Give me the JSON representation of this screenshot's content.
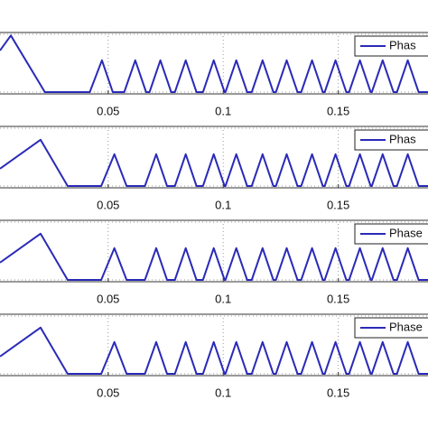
{
  "chart_data": [
    {
      "type": "line",
      "x": [
        0.003,
        0.0077,
        0.0225,
        0.042,
        0.0473,
        0.052,
        0.057,
        0.0618,
        0.0665,
        0.068,
        0.0727,
        0.0774,
        0.079,
        0.0837,
        0.0884,
        0.0912,
        0.0959,
        0.1006,
        0.101,
        0.1057,
        0.1104,
        0.1124,
        0.1171,
        0.1218,
        0.1229,
        0.1276,
        0.1323,
        0.1339,
        0.1386,
        0.1433,
        0.1441,
        0.1488,
        0.1535,
        0.1547,
        0.1594,
        0.1641,
        0.1646,
        0.1693,
        0.174,
        0.1755,
        0.1802,
        0.1849,
        0.189
      ],
      "series": [
        {
          "name": "Phas",
          "color": "#2a2ab8",
          "values": [
            0.72,
            0.98,
            0,
            0,
            0.55,
            0,
            0,
            0.55,
            0,
            0,
            0.55,
            0,
            0,
            0.55,
            0,
            0,
            0.55,
            0,
            0,
            0.55,
            0,
            0,
            0.55,
            0,
            0,
            0.55,
            0,
            0,
            0.55,
            0,
            0,
            0.55,
            0,
            0,
            0.55,
            0,
            0,
            0.55,
            0,
            0,
            0.55,
            0,
            0
          ]
        }
      ],
      "xlim": [
        0.003,
        0.189
      ],
      "xticks": [
        0.05,
        0.1,
        0.15
      ],
      "ylim": [
        0,
        1
      ],
      "grid": true
    },
    {
      "type": "line",
      "x": [
        0.003,
        0.0206,
        0.0324,
        0.047,
        0.0527,
        0.058,
        0.066,
        0.0709,
        0.0756,
        0.079,
        0.0837,
        0.0884,
        0.0912,
        0.0959,
        0.1006,
        0.101,
        0.1057,
        0.1104,
        0.1124,
        0.1171,
        0.1218,
        0.1229,
        0.1276,
        0.1323,
        0.1339,
        0.1386,
        0.1433,
        0.1441,
        0.1488,
        0.1535,
        0.1547,
        0.1594,
        0.1641,
        0.1646,
        0.1693,
        0.174,
        0.1755,
        0.1802,
        0.1849,
        0.189
      ],
      "series": [
        {
          "name": "Phas",
          "color": "#2a2ab8",
          "values": [
            0.3,
            0.8,
            0,
            0,
            0.55,
            0,
            0,
            0.55,
            0,
            0,
            0.55,
            0,
            0,
            0.55,
            0,
            0,
            0.55,
            0,
            0,
            0.55,
            0,
            0,
            0.55,
            0,
            0,
            0.55,
            0,
            0,
            0.55,
            0,
            0,
            0.55,
            0,
            0,
            0.55,
            0,
            0,
            0.55,
            0,
            0
          ]
        }
      ],
      "xlim": [
        0.003,
        0.189
      ],
      "xticks": [
        0.05,
        0.1,
        0.15
      ],
      "ylim": [
        0,
        1
      ],
      "grid": true
    },
    {
      "type": "line",
      "x": [
        0.003,
        0.0206,
        0.0324,
        0.047,
        0.0527,
        0.058,
        0.066,
        0.0709,
        0.0756,
        0.079,
        0.0837,
        0.0884,
        0.0912,
        0.0959,
        0.1006,
        0.101,
        0.1057,
        0.1104,
        0.1124,
        0.1171,
        0.1218,
        0.1229,
        0.1276,
        0.1323,
        0.1339,
        0.1386,
        0.1433,
        0.1441,
        0.1488,
        0.1535,
        0.1547,
        0.1594,
        0.1641,
        0.1646,
        0.1693,
        0.174,
        0.1755,
        0.1802,
        0.1849,
        0.189
      ],
      "series": [
        {
          "name": "Phase",
          "color": "#2a2ab8",
          "values": [
            0.3,
            0.8,
            0,
            0,
            0.55,
            0,
            0,
            0.55,
            0,
            0,
            0.55,
            0,
            0,
            0.55,
            0,
            0,
            0.55,
            0,
            0,
            0.55,
            0,
            0,
            0.55,
            0,
            0,
            0.55,
            0,
            0,
            0.55,
            0,
            0,
            0.55,
            0,
            0,
            0.55,
            0,
            0,
            0.55,
            0,
            0
          ]
        }
      ],
      "xlim": [
        0.003,
        0.189
      ],
      "xticks": [
        0.05,
        0.1,
        0.15
      ],
      "ylim": [
        0,
        1
      ],
      "grid": true
    },
    {
      "type": "line",
      "x": [
        0.003,
        0.0206,
        0.0324,
        0.047,
        0.0527,
        0.058,
        0.066,
        0.0709,
        0.0756,
        0.079,
        0.0837,
        0.0884,
        0.0912,
        0.0959,
        0.1006,
        0.101,
        0.1057,
        0.1104,
        0.1124,
        0.1171,
        0.1218,
        0.1229,
        0.1276,
        0.1323,
        0.1339,
        0.1386,
        0.1433,
        0.1441,
        0.1488,
        0.1535,
        0.1547,
        0.1594,
        0.1641,
        0.1646,
        0.1693,
        0.174,
        0.1755,
        0.1802,
        0.1849,
        0.189
      ],
      "series": [
        {
          "name": "Phase",
          "color": "#2a2ab8",
          "values": [
            0.3,
            0.8,
            0,
            0,
            0.55,
            0,
            0,
            0.55,
            0,
            0,
            0.55,
            0,
            0,
            0.55,
            0,
            0,
            0.55,
            0,
            0,
            0.55,
            0,
            0,
            0.55,
            0,
            0,
            0.55,
            0,
            0,
            0.55,
            0,
            0,
            0.55,
            0,
            0,
            0.55,
            0,
            0,
            0.55,
            0,
            0
          ]
        }
      ],
      "xlim": [
        0.003,
        0.189
      ],
      "xticks": [
        0.05,
        0.1,
        0.15
      ],
      "ylim": [
        0,
        1
      ],
      "grid": true
    }
  ]
}
